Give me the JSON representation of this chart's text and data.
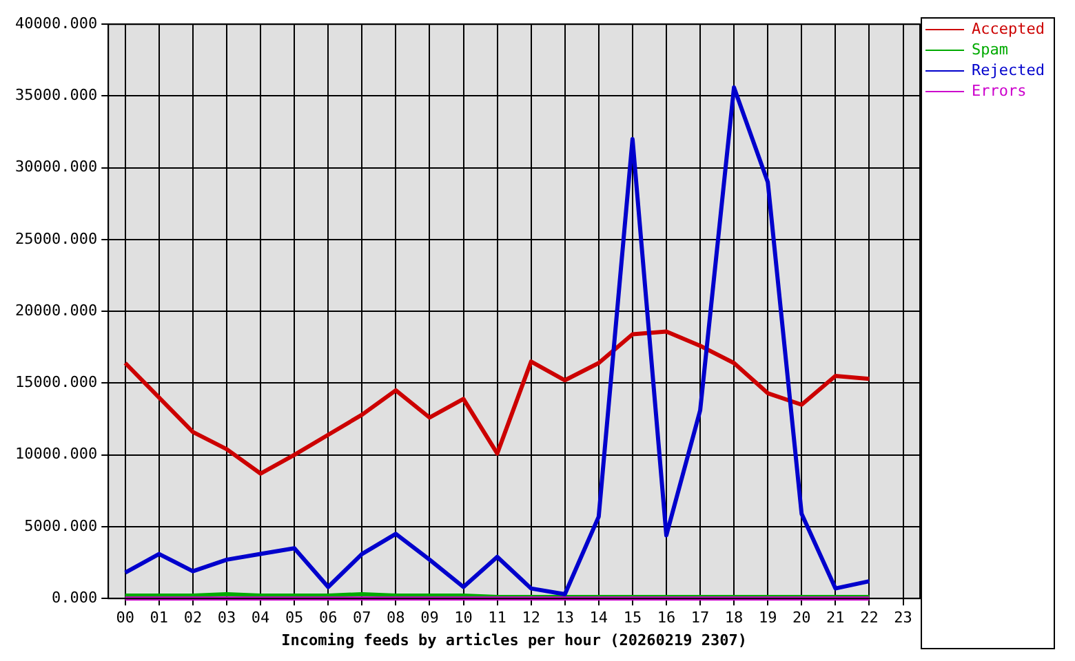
{
  "chart_data": {
    "type": "line",
    "xlabel": "Incoming feeds by articles per hour (20260219 2307)",
    "categories": [
      "00",
      "01",
      "02",
      "03",
      "04",
      "05",
      "06",
      "07",
      "08",
      "09",
      "10",
      "11",
      "12",
      "13",
      "14",
      "15",
      "16",
      "17",
      "18",
      "19",
      "20",
      "21",
      "22",
      "23"
    ],
    "series": [
      {
        "name": "Accepted",
        "color": "#cc0000",
        "values": [
          16400,
          14000,
          11600,
          10400,
          8700,
          10000,
          11400,
          12800,
          14500,
          12600,
          13900,
          10100,
          16500,
          15200,
          16400,
          18400,
          18600,
          17600,
          16400,
          14300,
          13500,
          15500,
          15300,
          null
        ]
      },
      {
        "name": "Spam",
        "color": "#00aa00",
        "values": [
          200,
          200,
          200,
          300,
          200,
          200,
          200,
          300,
          200,
          200,
          200,
          100,
          100,
          100,
          100,
          100,
          100,
          100,
          100,
          100,
          100,
          100,
          100,
          null
        ]
      },
      {
        "name": "Rejected",
        "color": "#0000cc",
        "values": [
          1800,
          3100,
          1900,
          2700,
          3100,
          3500,
          800,
          3100,
          4500,
          2700,
          800,
          2900,
          700,
          300,
          5700,
          32000,
          4400,
          13100,
          35600,
          29000,
          5900,
          700,
          1200,
          null
        ]
      },
      {
        "name": "Errors",
        "color": "#cc00cc",
        "values": [
          0,
          0,
          0,
          0,
          0,
          0,
          0,
          0,
          0,
          0,
          0,
          0,
          0,
          0,
          0,
          0,
          0,
          0,
          0,
          0,
          0,
          0,
          0,
          null
        ]
      }
    ],
    "ylim": [
      0,
      40000
    ],
    "yticks": [
      {
        "value": 0,
        "label": "0.000"
      },
      {
        "value": 5000,
        "label": "5000.000"
      },
      {
        "value": 10000,
        "label": "10000.000"
      },
      {
        "value": 15000,
        "label": "15000.000"
      },
      {
        "value": 20000,
        "label": "20000.000"
      },
      {
        "value": 25000,
        "label": "25000.000"
      },
      {
        "value": 30000,
        "label": "30000.000"
      },
      {
        "value": 35000,
        "label": "35000.000"
      },
      {
        "value": 40000,
        "label": "40000.000"
      }
    ],
    "grid": true,
    "legend": "top right",
    "marker": "none",
    "line_style": "solid"
  }
}
